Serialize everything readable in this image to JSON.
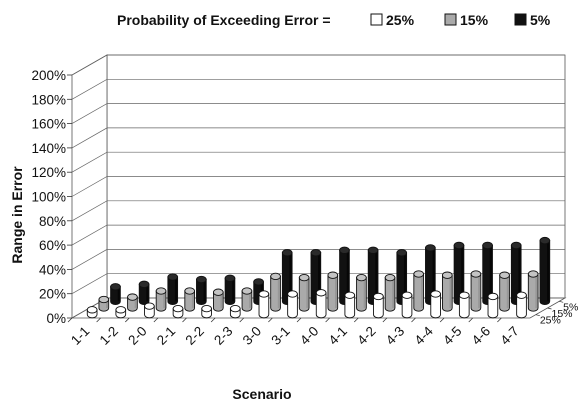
{
  "chart_data": {
    "type": "bar",
    "subtype": "3d-clustered-column",
    "legend": {
      "prefix": "Probability of Exceeding Error =",
      "placement": "top",
      "entries": [
        "25%",
        "15%",
        "5%"
      ]
    },
    "xlabel": "Scenario",
    "ylabel": "Range in Error",
    "ylim": [
      0,
      200
    ],
    "yticks": [
      "0%",
      "20%",
      "40%",
      "60%",
      "80%",
      "100%",
      "120%",
      "140%",
      "160%",
      "180%",
      "200%"
    ],
    "categories": [
      "1-1",
      "1-2",
      "2-0",
      "2-1",
      "2-2",
      "2-3",
      "3-0",
      "3-1",
      "4-0",
      "4-1",
      "4-2",
      "4-3",
      "4-4",
      "4-5",
      "4-6",
      "4-7"
    ],
    "depth_labels": [
      "5%",
      "15%",
      "25%"
    ],
    "grid": true,
    "series": [
      {
        "name": "25%",
        "color": "#ffffff",
        "values": [
          4,
          4,
          7,
          5,
          5,
          5,
          17,
          17,
          18,
          16,
          15,
          16,
          17,
          16,
          15,
          16
        ]
      },
      {
        "name": "15%",
        "color": "#aaaaaa",
        "values": [
          7,
          9,
          14,
          14,
          13,
          14,
          26,
          25,
          27,
          25,
          25,
          28,
          27,
          28,
          27,
          28
        ]
      },
      {
        "name": "5%",
        "color": "#111111",
        "values": [
          12,
          14,
          20,
          18,
          19,
          16,
          40,
          40,
          42,
          42,
          40,
          44,
          46,
          46,
          46,
          50
        ]
      }
    ]
  }
}
